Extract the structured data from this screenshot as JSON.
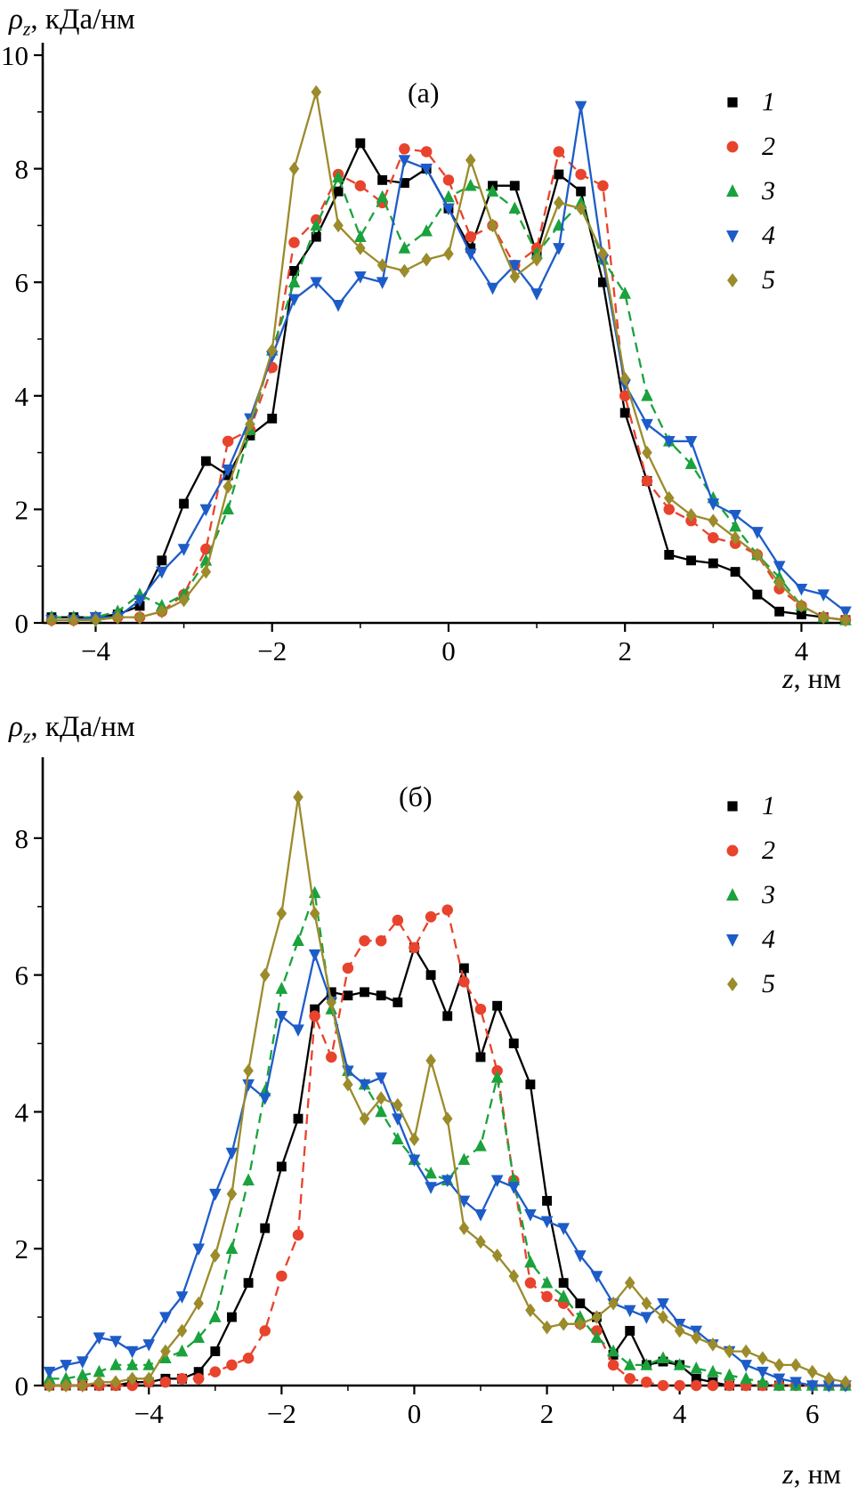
{
  "chart_data": [
    {
      "type": "line",
      "panel_label": "(а)",
      "ylabel_parts": {
        "symbol": "ρ",
        "subscript": "z",
        "units": ", кДа/нм"
      },
      "xlabel_parts": {
        "symbol": "z",
        "units": ", нм"
      },
      "xlim": [
        -4.6,
        4.5
      ],
      "ylim": [
        0,
        10
      ],
      "xticks": [
        -4,
        -2,
        0,
        2,
        4
      ],
      "yticks": [
        0,
        2,
        4,
        6,
        8,
        10
      ],
      "xminor": [
        -3,
        -1,
        1,
        3
      ],
      "yminor": [
        1,
        3,
        5,
        7,
        9
      ],
      "grid": false,
      "legend_position": "top-right",
      "x": [
        -4.5,
        -4.25,
        -4,
        -3.75,
        -3.5,
        -3.25,
        -3,
        -2.75,
        -2.5,
        -2.25,
        -2,
        -1.75,
        -1.5,
        -1.25,
        -1,
        -0.75,
        -0.5,
        -0.25,
        0,
        0.25,
        0.5,
        0.75,
        1,
        1.25,
        1.5,
        1.75,
        2,
        2.25,
        2.5,
        2.75,
        3,
        3.25,
        3.5,
        3.75,
        4,
        4.25,
        4.5
      ],
      "series": [
        {
          "name": "1",
          "marker": "square",
          "color": "#000000",
          "dash": null,
          "values": [
            0.1,
            0.1,
            0.1,
            0.15,
            0.3,
            1.1,
            2.1,
            2.85,
            2.6,
            3.3,
            3.6,
            6.2,
            6.8,
            7.6,
            8.45,
            7.8,
            7.75,
            8.0,
            7.3,
            6.6,
            7.7,
            7.7,
            6.5,
            7.9,
            7.6,
            6.0,
            3.7,
            2.5,
            1.2,
            1.1,
            1.05,
            0.9,
            0.5,
            0.2,
            0.15,
            0.1,
            0.05
          ]
        },
        {
          "name": "2",
          "marker": "circle",
          "color": "#e8432d",
          "dash": "11 7",
          "values": [
            0.05,
            0.05,
            0.1,
            0.1,
            0.1,
            0.2,
            0.5,
            1.3,
            3.2,
            3.4,
            4.5,
            6.7,
            7.1,
            7.9,
            7.7,
            7.4,
            8.35,
            8.3,
            7.8,
            6.8,
            7.0,
            6.3,
            6.6,
            8.3,
            7.9,
            7.7,
            4.0,
            2.5,
            2.0,
            1.8,
            1.5,
            1.4,
            1.2,
            0.6,
            0.3,
            0.1,
            0.05
          ]
        },
        {
          "name": "3",
          "marker": "triangle-up",
          "color": "#1aa23c",
          "dash": "11 7",
          "values": [
            0.1,
            0.1,
            0.1,
            0.2,
            0.5,
            0.3,
            0.5,
            1.1,
            2.0,
            3.4,
            4.8,
            6.0,
            7.0,
            7.85,
            6.8,
            7.5,
            6.6,
            6.9,
            7.5,
            7.7,
            7.6,
            7.3,
            6.5,
            7.0,
            7.4,
            6.4,
            5.8,
            4.0,
            3.2,
            2.8,
            2.2,
            1.7,
            1.2,
            0.8,
            0.3,
            0.1,
            0.05
          ]
        },
        {
          "name": "4",
          "marker": "triangle-down",
          "color": "#1d5cc8",
          "dash": null,
          "values": [
            0.05,
            0.05,
            0.1,
            0.1,
            0.4,
            0.9,
            1.3,
            2.0,
            2.7,
            3.6,
            4.7,
            5.7,
            6.0,
            5.6,
            6.1,
            6.0,
            8.15,
            8.0,
            7.3,
            6.5,
            5.9,
            6.3,
            5.8,
            6.6,
            9.1,
            6.4,
            4.2,
            3.5,
            3.2,
            3.2,
            2.1,
            1.9,
            1.6,
            1.0,
            0.6,
            0.5,
            0.2
          ]
        },
        {
          "name": "5",
          "marker": "diamond",
          "color": "#9b8b2b",
          "dash": null,
          "values": [
            0.05,
            0.05,
            0.05,
            0.1,
            0.1,
            0.2,
            0.4,
            0.9,
            2.4,
            3.5,
            4.8,
            8.0,
            9.35,
            7.0,
            6.6,
            6.3,
            6.2,
            6.4,
            6.5,
            8.15,
            7.0,
            6.1,
            6.4,
            7.4,
            7.3,
            6.5,
            4.3,
            3.0,
            2.2,
            1.9,
            1.8,
            1.5,
            1.2,
            0.7,
            0.3,
            0.1,
            0.05
          ]
        }
      ]
    },
    {
      "type": "line",
      "panel_label": "(б)",
      "ylabel_parts": {
        "symbol": "ρ",
        "subscript": "z",
        "units": ", кДа/нм"
      },
      "xlabel_parts": {
        "symbol": "z",
        "units": ", нм"
      },
      "xlim": [
        -5.6,
        6.5
      ],
      "ylim": [
        0,
        9
      ],
      "xticks": [
        -4,
        -2,
        0,
        2,
        4,
        6
      ],
      "yticks": [
        0,
        2,
        4,
        6,
        8
      ],
      "xminor": [
        -5,
        -3,
        -1,
        1,
        3,
        5
      ],
      "yminor": [
        1,
        3,
        5,
        7
      ],
      "grid": false,
      "legend_position": "top-right",
      "x": [
        -5.5,
        -5.25,
        -5,
        -4.75,
        -4.5,
        -4.25,
        -4,
        -3.75,
        -3.5,
        -3.25,
        -3,
        -2.75,
        -2.5,
        -2.25,
        -2,
        -1.75,
        -1.5,
        -1.25,
        -1,
        -0.75,
        -0.5,
        -0.25,
        0,
        0.25,
        0.5,
        0.75,
        1,
        1.25,
        1.5,
        1.75,
        2,
        2.25,
        2.5,
        2.75,
        3,
        3.25,
        3.5,
        3.75,
        4,
        4.25,
        4.5,
        4.75,
        5,
        5.25,
        5.5,
        5.75,
        6,
        6.25,
        6.5
      ],
      "series": [
        {
          "name": "1",
          "marker": "square",
          "color": "#000000",
          "dash": null,
          "values": [
            0,
            0,
            0,
            0,
            0,
            0.05,
            0.05,
            0.1,
            0.1,
            0.2,
            0.5,
            1.0,
            1.5,
            2.3,
            3.2,
            3.9,
            5.5,
            5.75,
            5.7,
            5.75,
            5.7,
            5.6,
            6.4,
            6.0,
            5.4,
            6.1,
            4.8,
            5.55,
            5.0,
            4.4,
            2.7,
            1.5,
            1.2,
            1.0,
            0.45,
            0.8,
            0.3,
            0.35,
            0.3,
            0.1,
            0.05,
            0,
            0,
            0,
            0,
            0,
            0,
            0,
            0
          ]
        },
        {
          "name": "2",
          "marker": "circle",
          "color": "#e8432d",
          "dash": "11 7",
          "values": [
            0,
            0,
            0,
            0,
            0,
            0,
            0.05,
            0.05,
            0.1,
            0.1,
            0.2,
            0.3,
            0.4,
            0.8,
            1.6,
            2.2,
            5.4,
            4.8,
            6.1,
            6.5,
            6.5,
            6.8,
            6.4,
            6.85,
            6.95,
            5.9,
            5.5,
            4.6,
            3.0,
            1.5,
            1.3,
            1.2,
            0.9,
            0.8,
            0.3,
            0.1,
            0.05,
            0,
            0,
            0,
            0,
            0,
            0,
            0,
            0,
            0,
            0,
            0,
            0
          ]
        },
        {
          "name": "3",
          "marker": "triangle-up",
          "color": "#1aa23c",
          "dash": "11 7",
          "values": [
            0.1,
            0.1,
            0.15,
            0.2,
            0.3,
            0.3,
            0.3,
            0.4,
            0.5,
            0.7,
            1.0,
            2.0,
            3.0,
            4.3,
            5.8,
            6.5,
            7.2,
            5.5,
            4.6,
            4.4,
            4.0,
            3.6,
            3.3,
            3.1,
            3.0,
            3.3,
            3.5,
            4.5,
            3.0,
            1.8,
            1.5,
            1.3,
            1.0,
            0.7,
            0.5,
            0.3,
            0.3,
            0.4,
            0.3,
            0.25,
            0.2,
            0.15,
            0.1,
            0.05,
            0,
            0,
            0,
            0,
            0
          ]
        },
        {
          "name": "4",
          "marker": "triangle-down",
          "color": "#1d5cc8",
          "dash": null,
          "values": [
            0.2,
            0.3,
            0.35,
            0.7,
            0.65,
            0.5,
            0.6,
            1.0,
            1.3,
            2.0,
            2.8,
            3.4,
            4.4,
            4.2,
            5.4,
            5.2,
            6.3,
            5.6,
            4.6,
            4.4,
            4.5,
            3.9,
            3.3,
            2.9,
            3.0,
            2.7,
            2.5,
            3.0,
            2.9,
            2.5,
            2.4,
            2.3,
            1.9,
            1.6,
            1.2,
            1.1,
            1.0,
            1.2,
            0.9,
            0.8,
            0.6,
            0.5,
            0.3,
            0.2,
            0.1,
            0.05,
            0,
            0,
            0
          ]
        },
        {
          "name": "5",
          "marker": "diamond",
          "color": "#9b8b2b",
          "dash": null,
          "values": [
            0,
            0,
            0,
            0.05,
            0.05,
            0.1,
            0.1,
            0.5,
            0.8,
            1.2,
            1.9,
            2.8,
            4.6,
            6.0,
            6.9,
            8.6,
            6.9,
            5.6,
            4.4,
            3.9,
            4.2,
            4.1,
            3.6,
            4.75,
            3.9,
            2.3,
            2.1,
            1.9,
            1.6,
            1.1,
            0.85,
            0.9,
            0.9,
            1.0,
            1.2,
            1.5,
            1.2,
            1.0,
            0.8,
            0.7,
            0.6,
            0.5,
            0.5,
            0.4,
            0.3,
            0.3,
            0.2,
            0.1,
            0.05
          ]
        }
      ]
    }
  ]
}
